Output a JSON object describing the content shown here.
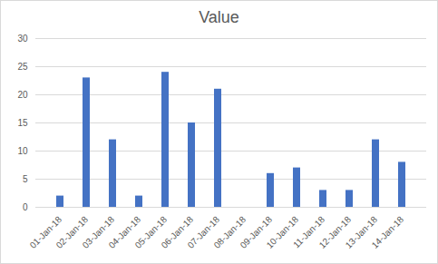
{
  "chart_data": {
    "type": "bar",
    "title": "Value",
    "categories": [
      "01-Jan-18",
      "02-Jan-18",
      "03-Jan-18",
      "04-Jan-18",
      "05-Jan-18",
      "06-Jan-18",
      "07-Jan-18",
      "08-Jan-18",
      "09-Jan-18",
      "10-Jan-18",
      "11-Jan-18",
      "12-Jan-18",
      "13-Jan-18",
      "14-Jan-18"
    ],
    "values": [
      2,
      23,
      12,
      2,
      24,
      15,
      21,
      0,
      6,
      7,
      3,
      3,
      12,
      8
    ],
    "color": "#4472c4",
    "ylim": [
      0,
      30
    ],
    "yticks": [
      0,
      5,
      10,
      15,
      20,
      25,
      30
    ],
    "grid": true
  }
}
